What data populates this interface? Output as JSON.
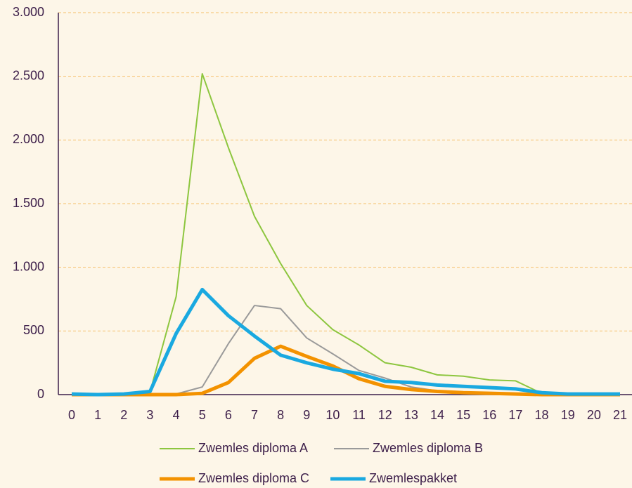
{
  "chart_data": {
    "type": "line",
    "categories": [
      "0",
      "1",
      "2",
      "3",
      "4",
      "5",
      "6",
      "7",
      "8",
      "9",
      "10",
      "11",
      "12",
      "13",
      "14",
      "15",
      "16",
      "17",
      "18",
      "19",
      "20",
      "21"
    ],
    "series": [
      {
        "name": "Zwemles diploma A",
        "color": "#8dc63f",
        "width": 2,
        "values": [
          0,
          0,
          0,
          20,
          770,
          2520,
          1940,
          1400,
          1030,
          700,
          510,
          390,
          250,
          215,
          155,
          145,
          115,
          108,
          10,
          0,
          0,
          0
        ]
      },
      {
        "name": "Zwemles diploma B",
        "color": "#9a9a9a",
        "width": 2,
        "values": [
          0,
          0,
          0,
          0,
          5,
          60,
          400,
          700,
          675,
          445,
          320,
          190,
          130,
          60,
          30,
          20,
          10,
          5,
          0,
          0,
          0,
          0
        ]
      },
      {
        "name": "Zwemles diploma C",
        "color": "#f39200",
        "width": 5,
        "values": [
          0,
          0,
          0,
          0,
          0,
          10,
          95,
          285,
          380,
          300,
          225,
          125,
          65,
          40,
          25,
          15,
          10,
          5,
          0,
          0,
          0,
          0
        ]
      },
      {
        "name": "Zwemlespakket",
        "color": "#1aa9e0",
        "width": 5,
        "values": [
          5,
          0,
          5,
          25,
          480,
          825,
          620,
          460,
          310,
          250,
          200,
          165,
          105,
          95,
          75,
          65,
          55,
          45,
          15,
          5,
          5,
          5
        ]
      }
    ],
    "ylim": [
      0,
      3000
    ],
    "yticks": [
      0,
      500,
      {
        "value": 1000,
        "label": "1.000"
      },
      {
        "value": 1500,
        "label": "1.500"
      },
      {
        "value": 2000,
        "label": "2.000"
      },
      {
        "value": 2500,
        "label": "2.500"
      },
      {
        "value": 3000,
        "label": "3.000"
      }
    ],
    "grid": true
  }
}
